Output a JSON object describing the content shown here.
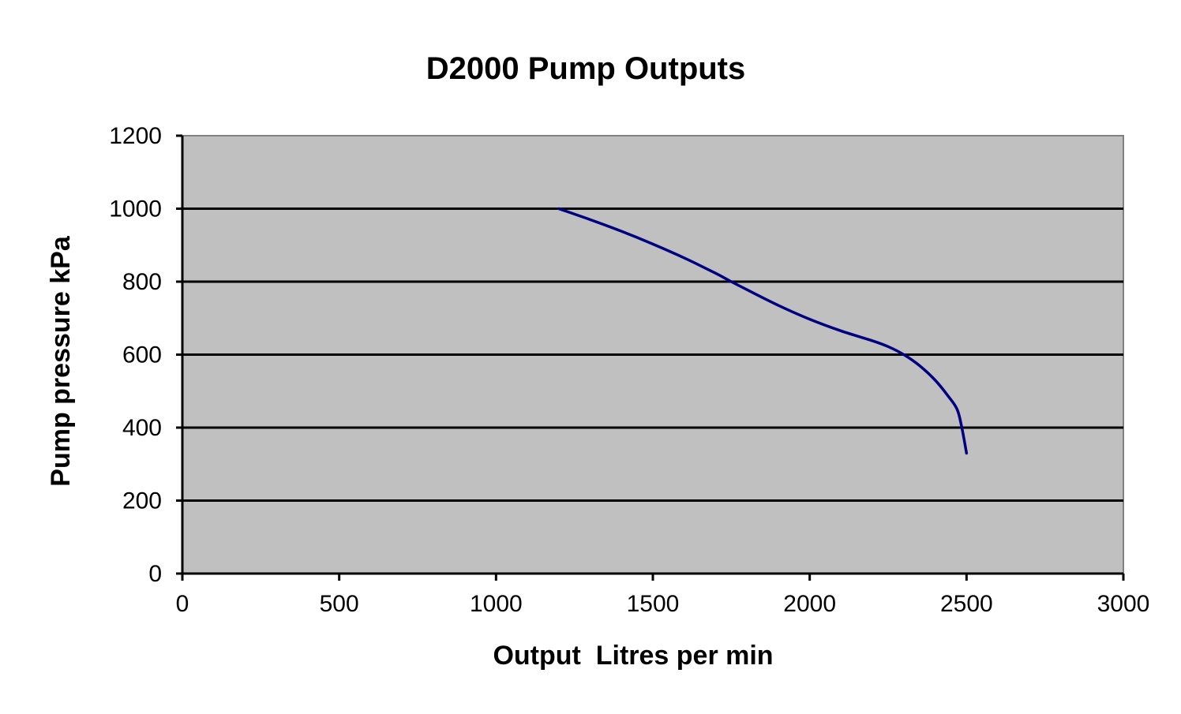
{
  "chart_data": {
    "type": "line",
    "title": "D2000 Pump Outputs",
    "xlabel": "Output  Litres per min",
    "ylabel": "Pump pressure kPa",
    "xlim": [
      0,
      3000
    ],
    "ylim": [
      0,
      1200
    ],
    "x_ticks": [
      0,
      500,
      1000,
      1500,
      2000,
      2500,
      3000
    ],
    "y_ticks": [
      0,
      200,
      400,
      600,
      800,
      1000,
      1200
    ],
    "grid": "horizontal",
    "legend": "none",
    "series": [
      {
        "points": [
          [
            1200,
            1000
          ],
          [
            1300,
            970
          ],
          [
            1400,
            938
          ],
          [
            1500,
            903
          ],
          [
            1600,
            865
          ],
          [
            1700,
            823
          ],
          [
            1750,
            800
          ],
          [
            1800,
            778
          ],
          [
            1900,
            735
          ],
          [
            2000,
            697
          ],
          [
            2100,
            665
          ],
          [
            2200,
            638
          ],
          [
            2250,
            622
          ],
          [
            2300,
            600
          ],
          [
            2350,
            570
          ],
          [
            2400,
            530
          ],
          [
            2440,
            488
          ],
          [
            2470,
            450
          ],
          [
            2485,
            400
          ],
          [
            2500,
            330
          ]
        ]
      }
    ],
    "colors": {
      "plot_background": "#c0c0c0",
      "gridline": "#000000",
      "line": "#000080",
      "border": "#808080"
    }
  }
}
